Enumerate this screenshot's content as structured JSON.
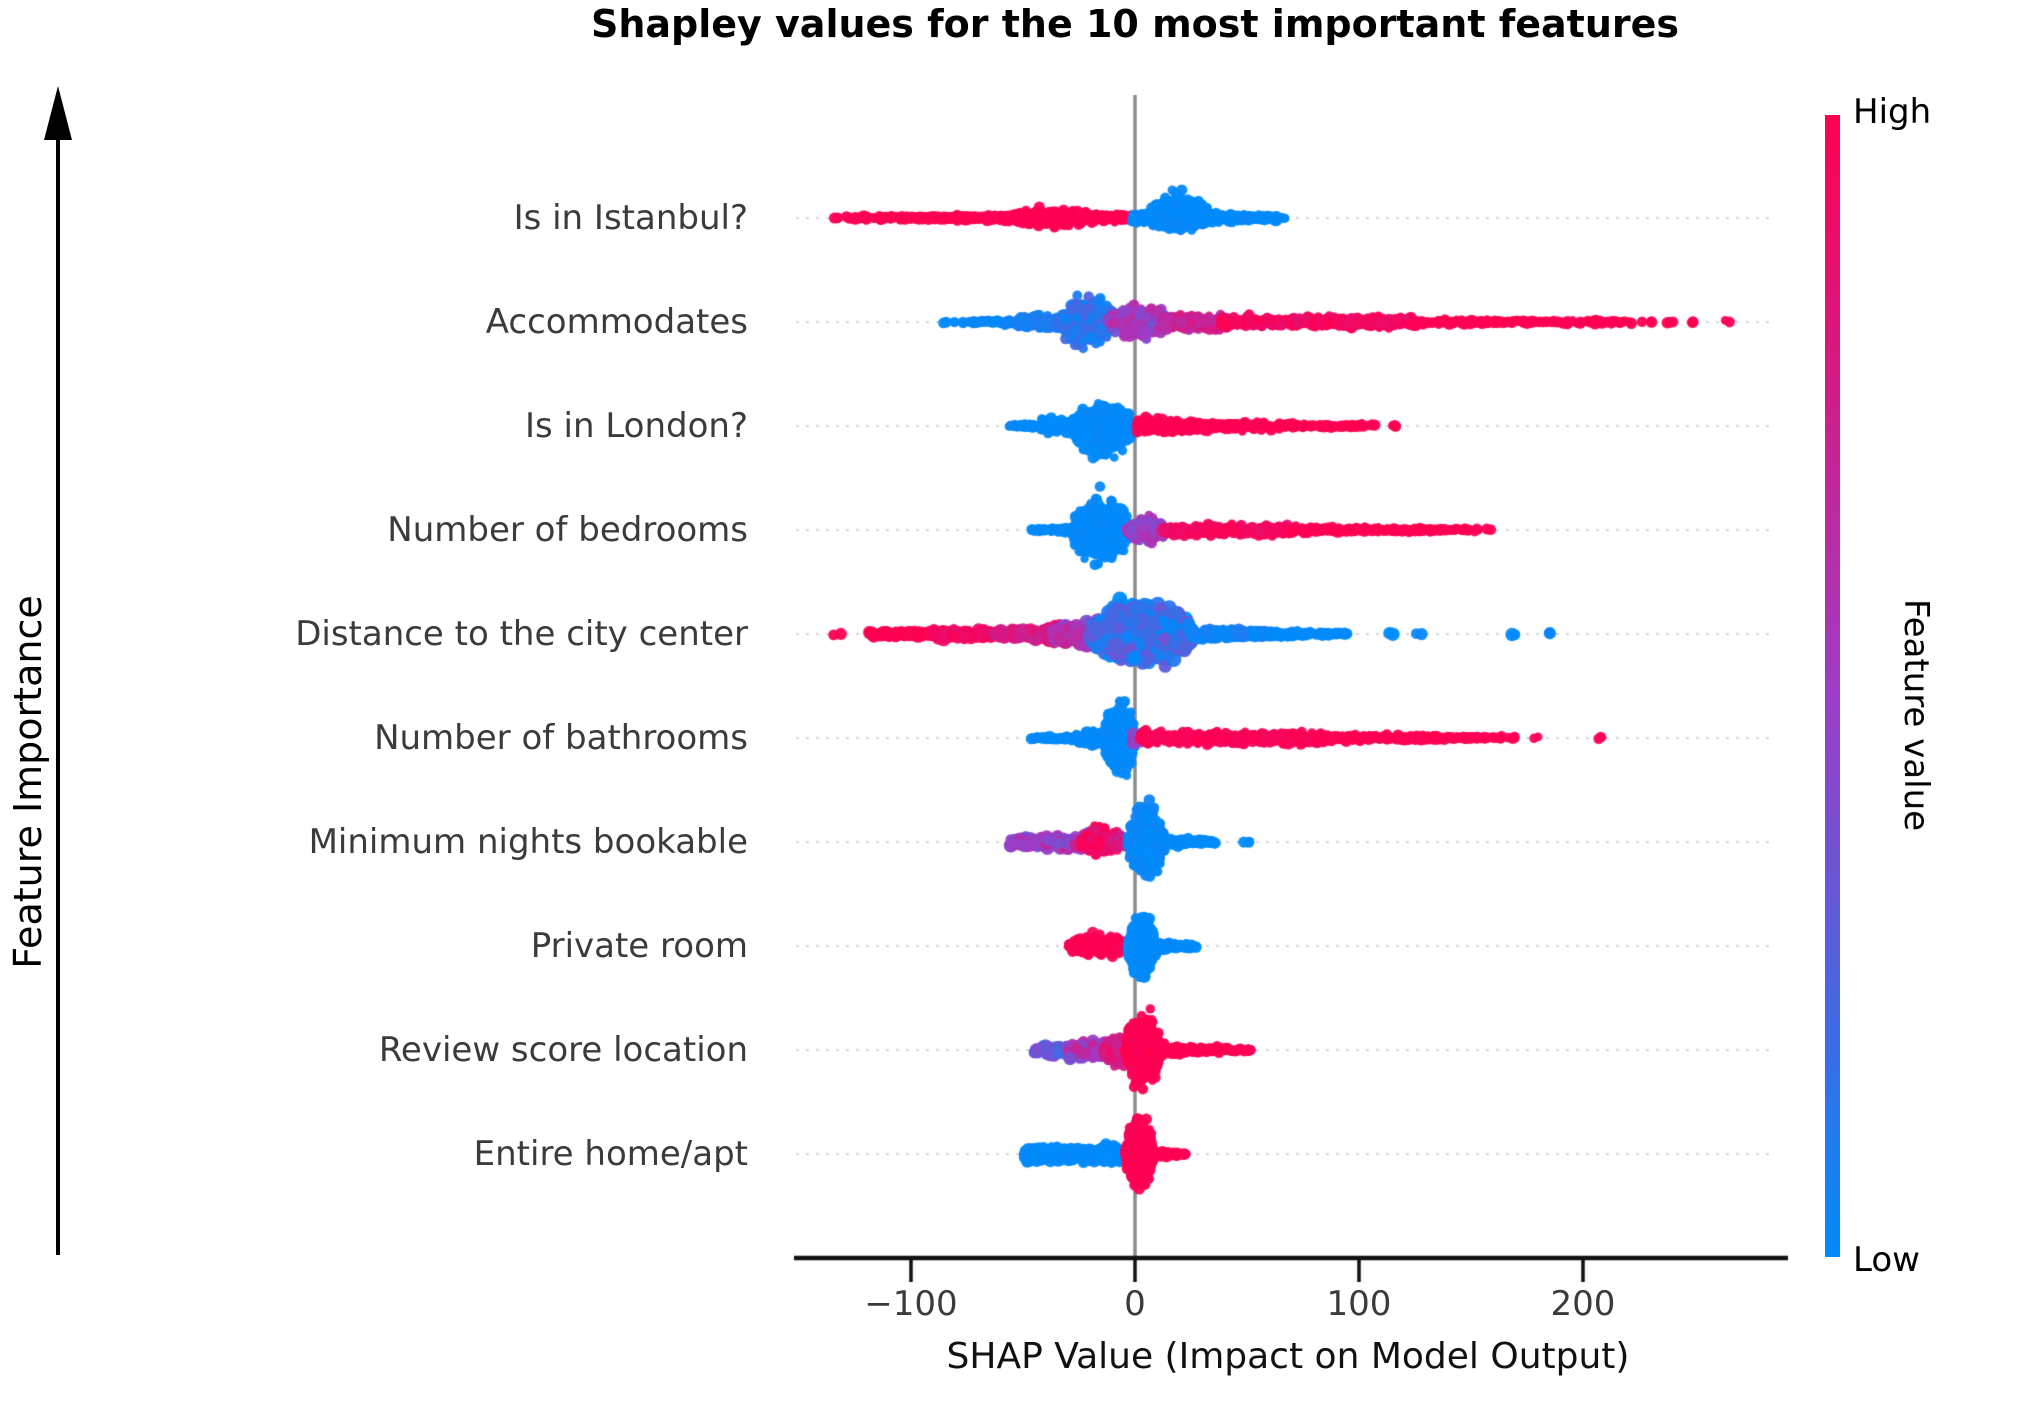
{
  "chart_data": {
    "type": "beeswarm",
    "title": "Shapley values for the 10 most important features",
    "xlabel": "SHAP Value (Impact on Model Output)",
    "ylabel": "Feature Importance",
    "x_ticks": [
      -100,
      0,
      100,
      200
    ],
    "x_tick_labels": [
      "−100",
      "0",
      "100",
      "200"
    ],
    "xlim": [
      -151,
      292
    ],
    "grid": "dotted-row-guides",
    "legend_position": "right-colorbar",
    "colorbar": {
      "high_label": "High",
      "low_label": "Low",
      "title": "Feature value",
      "gradient": [
        "#ff0051",
        "#cf1e8a",
        "#a03bc4",
        "#5063df",
        "#008bfb"
      ]
    },
    "colors": {
      "high": "#ff0051",
      "mid": "#a03bc4",
      "low": "#008bfb",
      "zero_line": "#8c8c8c",
      "guide": "#d6d6d6",
      "axis": "#111111"
    },
    "features": [
      {
        "label": "Is in Istanbul?",
        "shap_range": [
          -134,
          68
        ],
        "segments": [
          {
            "x0": -135,
            "x1": -131,
            "n": 3,
            "v": 1,
            "spread": 2,
            "shape": "band",
            "r": 5.5
          },
          {
            "x0": -129,
            "x1": -100,
            "n": 70,
            "v": 1,
            "spread": 3.5,
            "shape": "band"
          },
          {
            "x0": -102,
            "x1": -40,
            "n": 320,
            "v": 1,
            "spread": 7,
            "shape": "taperL"
          },
          {
            "x0": -58,
            "x1": -14,
            "n": 300,
            "v": 1,
            "spread": 13,
            "shape": "bulge"
          },
          {
            "x0": -16,
            "x1": -1,
            "n": 90,
            "v": 1,
            "spread": 5,
            "shape": "band"
          },
          {
            "x0": -1,
            "x1": 10,
            "n": 90,
            "v": 0,
            "spread": 8,
            "shape": "band"
          },
          {
            "x0": 6,
            "x1": 34,
            "n": 480,
            "v": 0,
            "spread": 38,
            "shape": "bulge",
            "skewUp": 1.0,
            "skewDn": 0.45
          },
          {
            "x0": 30,
            "x1": 58,
            "n": 160,
            "v": 0,
            "spread": 9,
            "shape": "taperR"
          },
          {
            "x0": 55,
            "x1": 68,
            "n": 25,
            "v": 0,
            "spread": 4,
            "shape": "band"
          }
        ]
      },
      {
        "label": "Accommodates",
        "shap_range": [
          -87,
          267
        ],
        "segments": [
          {
            "x0": -87,
            "x1": -84,
            "n": 2,
            "v": 0,
            "spread": 2
          },
          {
            "x0": -81,
            "x1": -76,
            "n": 4,
            "v": 0,
            "spread": 2.5
          },
          {
            "x0": -74,
            "x1": -50,
            "n": 70,
            "v": 0.04,
            "spread": 5,
            "shape": "taperL"
          },
          {
            "x0": -52,
            "x1": -30,
            "n": 140,
            "v": 0.08,
            "spread": 10,
            "shape": "band"
          },
          {
            "x0": -34,
            "x1": -8,
            "n": 520,
            "v": 0.14,
            "vj": 0.12,
            "spread": 36,
            "shape": "bulge"
          },
          {
            "x0": -12,
            "x1": 16,
            "n": 340,
            "v": 0.5,
            "vj": 0.15,
            "spread": 24,
            "shape": "bulge"
          },
          {
            "x0": 12,
            "x1": 42,
            "n": 220,
            "v": 0.72,
            "vj": 0.12,
            "spread": 11,
            "shape": "band"
          },
          {
            "x0": 38,
            "x1": 125,
            "n": 480,
            "v": 0.93,
            "vj": 0.07,
            "spread": 8,
            "shape": "band"
          },
          {
            "x0": 125,
            "x1": 190,
            "n": 150,
            "v": 1,
            "spread": 5,
            "shape": "taperR"
          },
          {
            "x0": 190,
            "x1": 222,
            "n": 40,
            "v": 1,
            "spread": 3,
            "shape": "band"
          },
          {
            "x0": 226,
            "x1": 231,
            "n": 3,
            "v": 1,
            "spread": 2
          },
          {
            "x0": 236,
            "x1": 241,
            "n": 3,
            "v": 1,
            "spread": 2
          },
          {
            "x0": 245,
            "x1": 250,
            "n": 2,
            "v": 1,
            "spread": 2
          },
          {
            "x0": 263,
            "x1": 267,
            "n": 2,
            "v": 1,
            "spread": 2
          }
        ]
      },
      {
        "label": "Is in London?",
        "shap_range": [
          -56,
          119
        ],
        "segments": [
          {
            "x0": -56,
            "x1": -38,
            "n": 50,
            "v": 0,
            "spread": 5,
            "shape": "taperL"
          },
          {
            "x0": -42,
            "x1": -24,
            "n": 110,
            "v": 0,
            "spread": 11,
            "shape": "band"
          },
          {
            "x0": -28,
            "x1": -1,
            "n": 640,
            "v": 0,
            "spread": 44,
            "shape": "bulge",
            "skewUp": 0.85,
            "skewDn": 1.15
          },
          {
            "x0": 1,
            "x1": 48,
            "n": 360,
            "v": 1,
            "spread": 12,
            "shape": "taperR"
          },
          {
            "x0": 45,
            "x1": 98,
            "n": 140,
            "v": 1,
            "spread": 6,
            "shape": "taperR"
          },
          {
            "x0": 98,
            "x1": 108,
            "n": 12,
            "v": 1,
            "spread": 3
          },
          {
            "x0": 114,
            "x1": 119,
            "n": 3,
            "v": 1,
            "spread": 2
          }
        ]
      },
      {
        "label": "Number of bedrooms",
        "shap_range": [
          -46,
          161
        ],
        "segments": [
          {
            "x0": -46,
            "x1": -26,
            "n": 70,
            "v": 0,
            "spread": 5,
            "shape": "taperL"
          },
          {
            "x0": -28,
            "x1": -2,
            "n": 560,
            "v": 0,
            "spread": 50,
            "shape": "bulge"
          },
          {
            "x0": -4,
            "x1": 14,
            "n": 240,
            "v": 0.5,
            "vj": 0.13,
            "spread": 19,
            "shape": "bulge"
          },
          {
            "x0": 12,
            "x1": 70,
            "n": 330,
            "v": 0.93,
            "vj": 0.06,
            "spread": 8,
            "shape": "band"
          },
          {
            "x0": 70,
            "x1": 142,
            "n": 220,
            "v": 1,
            "spread": 6,
            "shape": "taperR"
          },
          {
            "x0": 142,
            "x1": 154,
            "n": 18,
            "v": 1,
            "spread": 3
          },
          {
            "x0": 157,
            "x1": 161,
            "n": 2,
            "v": 1,
            "spread": 2
          }
        ]
      },
      {
        "label": "Distance to the city center",
        "shap_range": [
          -135,
          188
        ],
        "segments": [
          {
            "x0": -135,
            "x1": -131,
            "n": 2,
            "v": 1,
            "spread": 2,
            "r": 6
          },
          {
            "x0": -119,
            "x1": -90,
            "n": 70,
            "v": 1,
            "spread": 5,
            "shape": "band",
            "r": 6
          },
          {
            "x0": -92,
            "x1": -58,
            "n": 140,
            "v": 0.93,
            "vj": 0.05,
            "spread": 7,
            "shape": "band",
            "r": 6
          },
          {
            "x0": -62,
            "x1": -30,
            "n": 190,
            "v": 0.78,
            "vj": 0.1,
            "spread": 13,
            "shape": "taperL",
            "r": 6.5
          },
          {
            "x0": -36,
            "x1": -12,
            "n": 260,
            "v": 0.55,
            "vj": 0.18,
            "spread": 26,
            "shape": "taperL",
            "r": 7
          },
          {
            "x0": -20,
            "x1": 26,
            "n": 620,
            "v": 0.18,
            "vj": 0.2,
            "spread": 48,
            "shape": "bulge",
            "r": 7
          },
          {
            "x0": 24,
            "x1": 62,
            "n": 220,
            "v": 0.06,
            "vj": 0.06,
            "spread": 9,
            "shape": "taperR",
            "r": 6
          },
          {
            "x0": 60,
            "x1": 95,
            "n": 70,
            "v": 0,
            "spread": 5,
            "shape": "taperR",
            "r": 5.5
          },
          {
            "x0": 112,
            "x1": 117,
            "n": 2,
            "v": 0,
            "spread": 2,
            "r": 6
          },
          {
            "x0": 123,
            "x1": 128,
            "n": 2,
            "v": 0,
            "spread": 2,
            "r": 6
          },
          {
            "x0": 167,
            "x1": 172,
            "n": 2,
            "v": 0,
            "spread": 2,
            "r": 6
          },
          {
            "x0": 183,
            "x1": 188,
            "n": 2,
            "v": 0,
            "spread": 2,
            "r": 6
          }
        ]
      },
      {
        "label": "Number of bathrooms",
        "shap_range": [
          -46,
          209
        ],
        "segments": [
          {
            "x0": -46,
            "x1": -24,
            "n": 70,
            "v": 0,
            "spread": 5,
            "shape": "taperL"
          },
          {
            "x0": -26,
            "x1": -12,
            "n": 110,
            "v": 0,
            "spread": 11,
            "shape": "band"
          },
          {
            "x0": -14,
            "x1": 0,
            "n": 560,
            "v": 0,
            "spread": 56,
            "shape": "bulge"
          },
          {
            "x0": -1,
            "x1": 4,
            "n": 40,
            "v": 0.5,
            "vj": 0.15,
            "spread": 12,
            "shape": "band"
          },
          {
            "x0": 2,
            "x1": 85,
            "n": 470,
            "v": 0.97,
            "vj": 0.04,
            "spread": 9,
            "shape": "band"
          },
          {
            "x0": 85,
            "x1": 158,
            "n": 230,
            "v": 1,
            "spread": 6,
            "shape": "taperR"
          },
          {
            "x0": 158,
            "x1": 170,
            "n": 15,
            "v": 1,
            "spread": 3
          },
          {
            "x0": 176,
            "x1": 181,
            "n": 2,
            "v": 1,
            "spread": 2
          },
          {
            "x0": 204,
            "x1": 209,
            "n": 3,
            "v": 1,
            "spread": 2.5
          }
        ]
      },
      {
        "label": "Minimum nights bookable",
        "shap_range": [
          -56,
          52
        ],
        "segments": [
          {
            "x0": -56,
            "x1": -36,
            "n": 70,
            "v": 0.5,
            "vj": 0.15,
            "spread": 8,
            "shape": "band",
            "r": 6
          },
          {
            "x0": -40,
            "x1": -18,
            "n": 130,
            "v": 0.55,
            "vj": 0.2,
            "spread": 11,
            "shape": "band",
            "r": 6
          },
          {
            "x0": -24,
            "x1": -6,
            "n": 210,
            "v": 0.92,
            "vj": 0.1,
            "spread": 23,
            "shape": "bulge"
          },
          {
            "x0": -10,
            "x1": -1,
            "n": 60,
            "v": 0.75,
            "vj": 0.15,
            "spread": 10,
            "shape": "band"
          },
          {
            "x0": -3,
            "x1": 13,
            "n": 500,
            "v": 0.02,
            "vj": 0.04,
            "spread": 54,
            "shape": "bulge"
          },
          {
            "x0": 13,
            "x1": 36,
            "n": 130,
            "v": 0,
            "spread": 8,
            "shape": "taperR"
          },
          {
            "x0": 47,
            "x1": 52,
            "n": 3,
            "v": 0,
            "spread": 2.5
          }
        ]
      },
      {
        "label": "Private room",
        "shap_range": [
          -30,
          27
        ],
        "segments": [
          {
            "x0": -30,
            "x1": -2,
            "n": 260,
            "v": 1,
            "spread": 17,
            "shape": "bulge"
          },
          {
            "x0": -3,
            "x1": 9,
            "n": 420,
            "v": 0,
            "spread": 52,
            "shape": "bulge"
          },
          {
            "x0": 9,
            "x1": 27,
            "n": 110,
            "v": 0,
            "spread": 8,
            "shape": "taperR"
          }
        ]
      },
      {
        "label": "Review score location",
        "shap_range": [
          -46,
          52
        ],
        "segments": [
          {
            "x0": -46,
            "x1": -24,
            "n": 90,
            "v": 0.3,
            "vj": 0.15,
            "spread": 8,
            "shape": "band",
            "r": 6
          },
          {
            "x0": -30,
            "x1": -9,
            "n": 150,
            "v": 0.55,
            "vj": 0.18,
            "spread": 13,
            "shape": "band",
            "r": 6
          },
          {
            "x0": -14,
            "x1": -2,
            "n": 170,
            "v": 0.8,
            "vj": 0.12,
            "spread": 24,
            "shape": "bulge"
          },
          {
            "x0": -4,
            "x1": 11,
            "n": 520,
            "v": 1,
            "spread": 56,
            "shape": "bulge"
          },
          {
            "x0": 11,
            "x1": 36,
            "n": 170,
            "v": 1,
            "spread": 10,
            "shape": "taperR"
          },
          {
            "x0": 36,
            "x1": 52,
            "n": 45,
            "v": 1,
            "spread": 5,
            "shape": "taperR"
          }
        ]
      },
      {
        "label": "Entire home/apt",
        "shap_range": [
          -49,
          23
        ],
        "segments": [
          {
            "x0": -49,
            "x1": -8,
            "n": 330,
            "v": 0,
            "spread": 10,
            "shape": "band",
            "r": 6
          },
          {
            "x0": -16,
            "x1": -5,
            "n": 90,
            "v": 0,
            "spread": 15,
            "shape": "bulge",
            "r": 6
          },
          {
            "x0": -4,
            "x1": 8,
            "n": 460,
            "v": 1,
            "spread": 58,
            "shape": "bulge"
          },
          {
            "x0": 8,
            "x1": 23,
            "n": 90,
            "v": 1,
            "spread": 6,
            "shape": "taperR"
          }
        ]
      }
    ]
  }
}
